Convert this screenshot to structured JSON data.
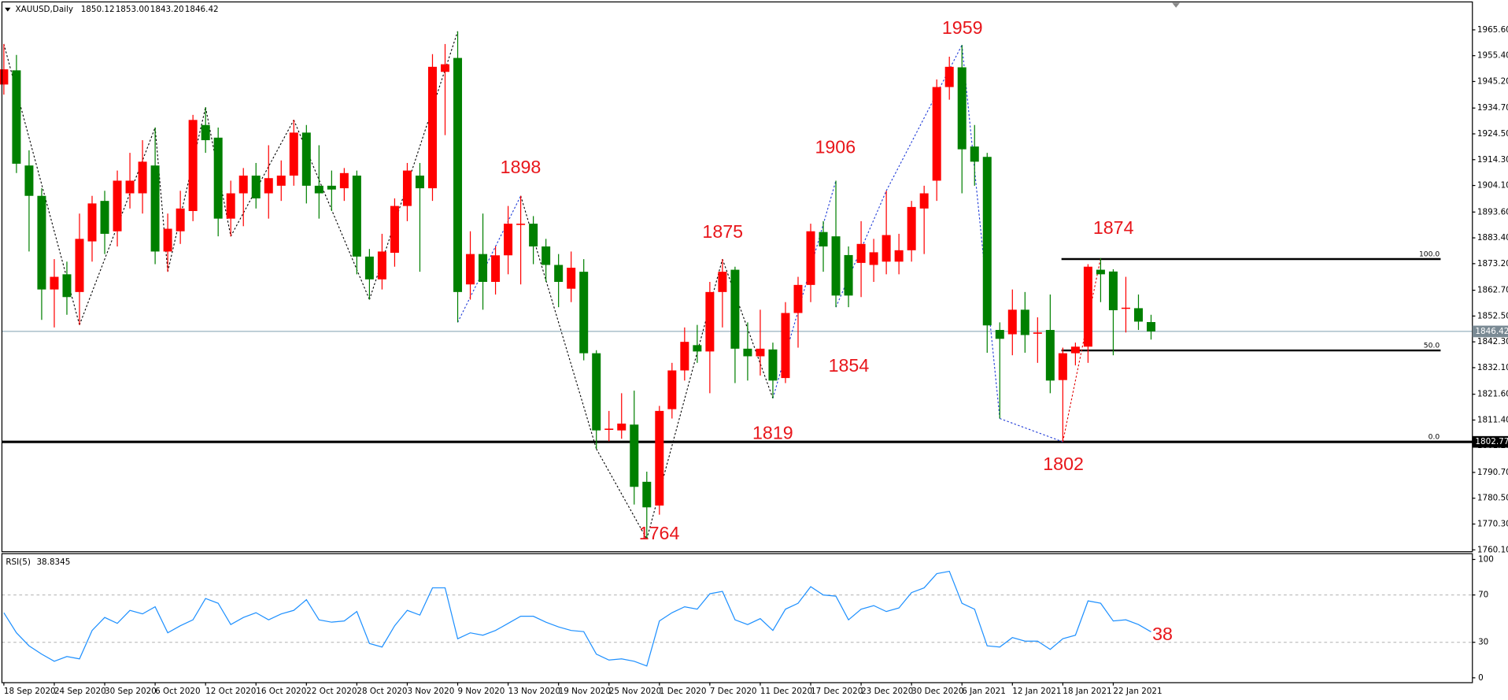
{
  "chart_data": [
    {
      "type": "candlestick",
      "title": "XAUUSD,Daily",
      "header_values": [
        "1850.12",
        "1853.00",
        "1843.20",
        "1846.42"
      ],
      "categories": [
        "18 Sep 2020",
        null,
        null,
        null,
        "24 Sep 2020",
        null,
        null,
        null,
        "30 Sep 2020",
        null,
        null,
        null,
        "6 Oct 2020",
        null,
        null,
        null,
        "12 Oct 2020",
        null,
        null,
        null,
        "16 Oct 2020",
        null,
        null,
        null,
        "22 Oct 2020",
        null,
        null,
        null,
        "28 Oct 2020",
        null,
        null,
        null,
        "3 Nov 2020",
        null,
        null,
        null,
        "9 Nov 2020",
        null,
        null,
        null,
        "13 Nov 2020",
        null,
        null,
        null,
        "19 Nov 2020",
        null,
        null,
        null,
        "25 Nov 2020",
        null,
        null,
        null,
        "1 Dec 2020",
        null,
        null,
        null,
        "7 Dec 2020",
        null,
        null,
        null,
        "11 Dec 2020",
        null,
        null,
        null,
        "17 Dec 2020",
        null,
        null,
        null,
        "23 Dec 2020",
        null,
        null,
        null,
        "30 Dec 2020",
        null,
        null,
        null,
        "6 Jan 2021",
        null,
        null,
        null,
        "12 Jan 2021",
        null,
        null,
        null,
        "18 Jan 2021",
        null,
        null,
        null,
        "22 Jan 2021",
        null,
        null,
        null
      ],
      "open": [
        1944,
        1949.6,
        1912,
        1900,
        1863,
        1869,
        1862,
        1882,
        1898,
        1886,
        1901,
        1901,
        1912,
        1878,
        1886,
        1894,
        1928,
        1923,
        1891,
        1901,
        1908,
        1901,
        1904,
        1908,
        1925,
        1904,
        1904,
        1903,
        1908,
        1876,
        1867,
        1877.5,
        1896,
        1908,
        1903,
        1949,
        1954.5,
        1865,
        1877,
        1866,
        1876.5,
        1888.5,
        1889,
        1880,
        1872.7,
        1863.3,
        1870,
        1837.8,
        1807.5,
        1807.3,
        1809.6,
        1787,
        1777.6,
        1815.7,
        1831,
        1841,
        1838.5,
        1862,
        1870.8,
        1839.6,
        1836.6,
        1839.3,
        1828,
        1853.7,
        1864.8,
        1885.7,
        1884,
        1876.6,
        1873.5,
        1872.7,
        1874,
        1874,
        1878.5,
        1895,
        1906,
        1943,
        1950.8,
        1919.5,
        1915.4,
        1847,
        1845.3,
        1855,
        1845.5,
        1847,
        1827.2,
        1837.8,
        1840.4,
        1870.8,
        1870.1,
        1855.5,
        1855.6,
        1850.12
      ],
      "high": [
        1960,
        1955.7,
        1918,
        1903,
        1875,
        1874,
        1893,
        1900,
        1902,
        1910,
        1917,
        1922,
        1927,
        1893,
        1902,
        1932,
        1935,
        1927,
        1906,
        1911,
        1913,
        1920,
        1914,
        1930,
        1928,
        1920,
        1910,
        1911,
        1910,
        1879,
        1885,
        1899,
        1913,
        1913,
        1956,
        1960,
        1965,
        1886,
        1893,
        1880,
        1896,
        1900,
        1892,
        1883,
        1877,
        1878,
        1875,
        1839,
        1815,
        1822,
        1823,
        1791,
        1817,
        1834,
        1848,
        1849,
        1866,
        1875,
        1872,
        1850,
        1855,
        1842,
        1858,
        1868,
        1889,
        1890,
        1906,
        1880,
        1890,
        1883,
        1902,
        1885,
        1898,
        1904,
        1946,
        1955,
        1959.6,
        1928,
        1917,
        1850,
        1863,
        1862,
        1852,
        1861,
        1840,
        1842,
        1873,
        1875.4,
        1871,
        1868,
        1861,
        1853
      ],
      "low": [
        1940,
        1909,
        1878,
        1851,
        1848,
        1853,
        1849,
        1874,
        1877,
        1880,
        1895,
        1893,
        1873,
        1870,
        1881,
        1890,
        1917,
        1884,
        1884,
        1888,
        1895,
        1891,
        1898,
        1904,
        1897,
        1891,
        1894,
        1898,
        1869,
        1859,
        1863,
        1872,
        1890,
        1870,
        1898,
        1924,
        1850,
        1859,
        1855,
        1861,
        1869,
        1865,
        1873,
        1866,
        1856,
        1858,
        1835,
        1800,
        1803,
        1804,
        1778,
        1764.4,
        1774,
        1812,
        1827,
        1834,
        1822,
        1848,
        1826,
        1827,
        1829,
        1820,
        1826,
        1840,
        1858,
        1870,
        1856,
        1856,
        1860,
        1866,
        1869,
        1869,
        1874,
        1877,
        1898,
        1938,
        1901,
        1904,
        1838,
        1812,
        1837,
        1838,
        1834,
        1822,
        1802.8,
        1833,
        1834,
        1858,
        1837,
        1846,
        1847,
        1843.2
      ],
      "close": [
        1950,
        1912.7,
        1900,
        1863,
        1868,
        1860,
        1883,
        1897,
        1885,
        1906,
        1906,
        1913.5,
        1878,
        1887,
        1895,
        1930,
        1922,
        1891,
        1901,
        1908,
        1899,
        1907,
        1908,
        1925,
        1904,
        1901,
        1902.5,
        1909,
        1876,
        1867,
        1878,
        1896,
        1910,
        1903,
        1951,
        1952,
        1862,
        1877,
        1866,
        1876.5,
        1889,
        1889,
        1880,
        1872.7,
        1866,
        1871.6,
        1837.8,
        1807.3,
        1808,
        1810,
        1785,
        1776.9,
        1815,
        1831,
        1842.3,
        1838.5,
        1862,
        1870,
        1839.6,
        1836.6,
        1839.6,
        1827,
        1853.7,
        1864.8,
        1886,
        1880,
        1860.6,
        1860.6,
        1881,
        1877.7,
        1884.5,
        1878.5,
        1895.6,
        1901,
        1943,
        1951,
        1918.4,
        1913.5,
        1848.8,
        1843.5,
        1855,
        1845,
        1846,
        1827,
        1837.8,
        1840.4,
        1872,
        1869,
        1854.8,
        1855.8,
        1850.3,
        1846.42
      ],
      "up_color": "#ff0000",
      "down_color": "#008000",
      "ylim": [
        1759.36,
        1976.64
      ],
      "yticks": [
        {
          "value": 1965.6,
          "label": "1965.60"
        },
        {
          "value": 1955.4,
          "label": "1955.40"
        },
        {
          "value": 1945.2,
          "label": "1945.20"
        },
        {
          "value": 1934.7,
          "label": "1934.70"
        },
        {
          "value": 1924.5,
          "label": "1924.50"
        },
        {
          "value": 1914.3,
          "label": "1914.30"
        },
        {
          "value": 1904.1,
          "label": "1904.10"
        },
        {
          "value": 1893.6,
          "label": "1893.60"
        },
        {
          "value": 1883.4,
          "label": "1883.40"
        },
        {
          "value": 1873.2,
          "label": "1873.20"
        },
        {
          "value": 1862.7,
          "label": "1862.70"
        },
        {
          "value": 1852.5,
          "label": "1852.50"
        },
        {
          "value": 1842.3,
          "label": "1842.30"
        },
        {
          "value": 1832.1,
          "label": "1832.10"
        },
        {
          "value": 1821.6,
          "label": "1821.60"
        },
        {
          "value": 1811.4,
          "label": "1811.40"
        },
        {
          "value": 1801.2,
          "label": "1801.20"
        },
        {
          "value": 1790.7,
          "label": "1790.70"
        },
        {
          "value": 1780.5,
          "label": "1780.50"
        },
        {
          "value": 1770.3,
          "label": "1770.30"
        },
        {
          "value": 1760.1,
          "label": "1760.10"
        }
      ],
      "fibonacci": {
        "levels": [
          {
            "value": 100,
            "label": "100.0"
          },
          {
            "value": 50,
            "label": "50.0"
          },
          {
            "value": 0,
            "label": "0.0"
          }
        ],
        "prices": [
          1875.03,
          1838.9,
          1802.77
        ]
      },
      "annotations": [
        1959,
        1898,
        1906,
        1875,
        1874,
        1854,
        1819,
        1764,
        1802
      ]
    },
    {
      "type": "line",
      "title": "RSI(5)",
      "values": [
        55,
        38,
        27,
        20,
        14,
        18,
        16,
        40,
        51,
        46,
        57,
        54,
        60,
        38,
        44,
        49,
        67,
        63,
        45,
        51,
        55,
        49,
        54,
        57,
        66,
        49,
        47,
        48,
        56,
        29,
        26,
        44,
        57,
        53,
        76,
        76,
        33,
        38,
        36,
        40,
        46,
        52,
        52,
        47,
        43,
        40,
        39,
        20,
        15,
        16,
        14,
        10,
        48,
        55,
        60,
        58,
        71,
        73,
        49,
        45,
        50,
        40,
        58,
        63,
        77,
        70,
        69,
        49,
        58,
        61,
        56,
        59,
        72,
        76,
        88,
        90,
        63,
        58,
        27,
        26,
        34,
        31,
        31,
        24,
        33,
        36,
        65,
        63,
        48,
        49,
        45,
        38.8345
      ],
      "color": "#1e90ff",
      "ylim": [
        -4.1,
        104.9
      ],
      "yticks": [
        100,
        70,
        30,
        0
      ],
      "levels": [
        70,
        30
      ],
      "annotation": 38
    }
  ]
}
